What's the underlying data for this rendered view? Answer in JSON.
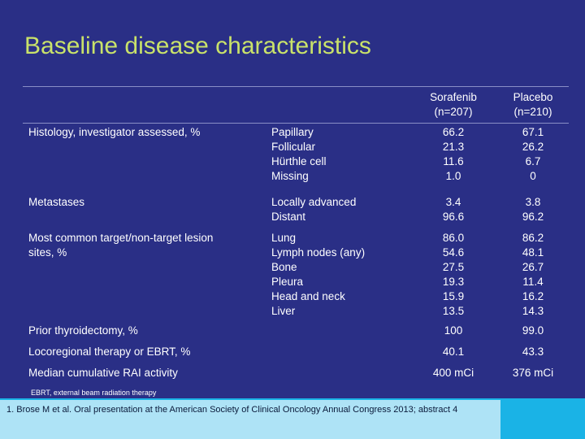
{
  "title": "Baseline disease characteristics",
  "columns": {
    "sorafenib": [
      "Sorafenib",
      "(n=207)"
    ],
    "placebo": [
      "Placebo",
      "(n=210)"
    ]
  },
  "rows": [
    {
      "label": [
        "Histology, investigator assessed, %"
      ],
      "sub": [
        "Papillary",
        "Follicular",
        "Hürthle cell",
        "Missing"
      ],
      "sorafenib": [
        "66.2",
        "21.3",
        "11.6",
        "1.0"
      ],
      "placebo": [
        "67.1",
        "26.2",
        "6.7",
        "0"
      ]
    },
    {
      "label": [
        "Metastases"
      ],
      "sub": [
        "Locally advanced",
        "Distant"
      ],
      "sorafenib": [
        "3.4",
        "96.6"
      ],
      "placebo": [
        "3.8",
        "96.2"
      ]
    },
    {
      "label": [
        "Most common target/non-target lesion",
        "sites, %"
      ],
      "sub": [
        "Lung",
        "Lymph nodes (any)",
        "Bone",
        "Pleura",
        "Head and neck",
        "Liver"
      ],
      "sorafenib": [
        "86.0",
        "54.6",
        "27.5",
        "19.3",
        "15.9",
        "13.5"
      ],
      "placebo": [
        "86.2",
        "48.1",
        "26.7",
        "11.4",
        "16.2",
        "14.3"
      ]
    },
    {
      "label": [
        "Prior thyroidectomy, %"
      ],
      "sub": [],
      "sorafenib": [
        "100"
      ],
      "placebo": [
        "99.0"
      ]
    },
    {
      "label": [
        "Locoregional therapy or EBRT, %"
      ],
      "sub": [],
      "sorafenib": [
        "40.1"
      ],
      "placebo": [
        "43.3"
      ]
    },
    {
      "label": [
        "Median cumulative RAI activity"
      ],
      "sub": [],
      "sorafenib": [
        "400 mCi"
      ],
      "placebo": [
        "376 mCi"
      ]
    }
  ],
  "footnote": "EBRT, external beam radiation therapy",
  "reference": "1. Brose M et al. Oral presentation at the American Society of Clinical Oncology Annual Congress 2013; abstract 4"
}
